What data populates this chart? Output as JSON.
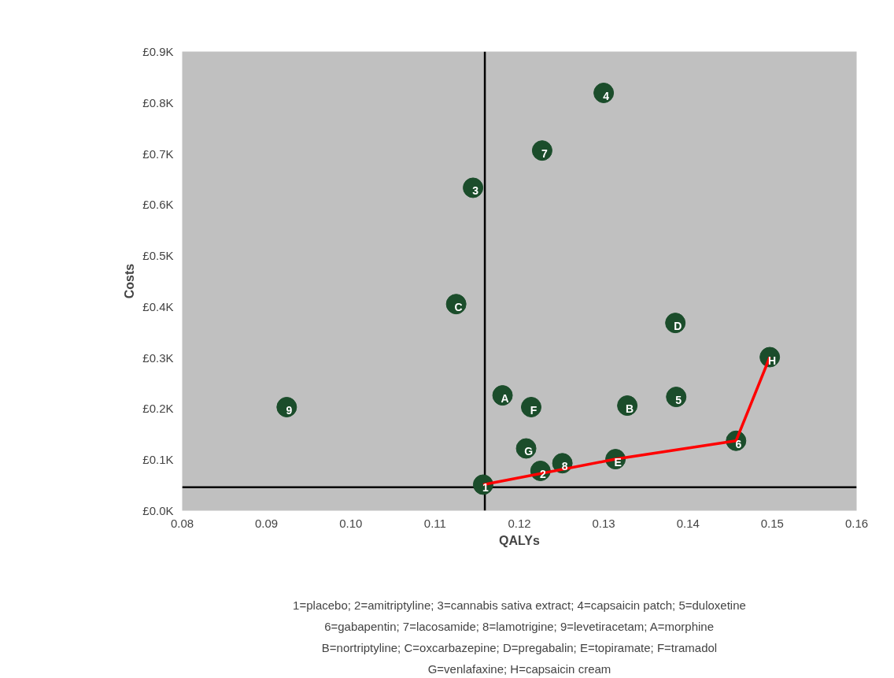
{
  "chart_data": {
    "type": "scatter",
    "xlabel": "QALYs",
    "ylabel": "Costs",
    "xlim": [
      0.08,
      0.16
    ],
    "ylim": [
      0.0,
      0.9
    ],
    "xticks": [
      {
        "value": 0.08,
        "label": "0.08"
      },
      {
        "value": 0.09,
        "label": "0.09"
      },
      {
        "value": 0.1,
        "label": "0.10"
      },
      {
        "value": 0.11,
        "label": "0.11"
      },
      {
        "value": 0.12,
        "label": "0.12"
      },
      {
        "value": 0.13,
        "label": "0.13"
      },
      {
        "value": 0.14,
        "label": "0.14"
      },
      {
        "value": 0.15,
        "label": "0.15"
      },
      {
        "value": 0.16,
        "label": "0.16"
      }
    ],
    "yticks": [
      {
        "value": 0.0,
        "label": "£0.0K"
      },
      {
        "value": 0.1,
        "label": "£0.1K"
      },
      {
        "value": 0.2,
        "label": "£0.2K"
      },
      {
        "value": 0.3,
        "label": "£0.3K"
      },
      {
        "value": 0.4,
        "label": "£0.4K"
      },
      {
        "value": 0.5,
        "label": "£0.5K"
      },
      {
        "value": 0.6,
        "label": "£0.6K"
      },
      {
        "value": 0.7,
        "label": "£0.7K"
      },
      {
        "value": 0.8,
        "label": "£0.8K"
      },
      {
        "value": 0.9,
        "label": "£0.9K"
      }
    ],
    "grid": false,
    "marker": "circle",
    "series": [
      {
        "type": "line",
        "marker": "none",
        "color": "#ff0000",
        "x": [
          0.1157,
          0.1314,
          0.1457,
          0.1497
        ],
        "values": [
          0.051,
          0.101,
          0.137,
          0.301
        ]
      },
      {
        "color": "#1b4d2b",
        "x": [
          0.1157,
          0.1225,
          0.1145,
          0.13,
          0.1386,
          0.1457,
          0.1227,
          0.1251,
          0.0924,
          0.118,
          0.1328,
          0.1125,
          0.1385,
          0.1314,
          0.1214,
          0.1208,
          0.1497
        ],
        "values": [
          0.051,
          0.078,
          0.633,
          0.819,
          0.223,
          0.137,
          0.706,
          0.093,
          0.203,
          0.226,
          0.206,
          0.405,
          0.368,
          0.101,
          0.203,
          0.122,
          0.301
        ]
      }
    ],
    "ref_lines": [
      {
        "axis": "x",
        "value": 0.1159,
        "color": "#000000"
      },
      {
        "axis": "y",
        "value": 0.046,
        "color": "#000000"
      }
    ],
    "annotations": [
      {
        "text": "1",
        "x": 0.1157,
        "y": 0.051
      },
      {
        "text": "2",
        "x": 0.1225,
        "y": 0.078
      },
      {
        "text": "3",
        "x": 0.1145,
        "y": 0.633
      },
      {
        "text": "4",
        "x": 0.13,
        "y": 0.819
      },
      {
        "text": "5",
        "x": 0.1386,
        "y": 0.223
      },
      {
        "text": "6",
        "x": 0.1457,
        "y": 0.137
      },
      {
        "text": "7",
        "x": 0.1227,
        "y": 0.706
      },
      {
        "text": "8",
        "x": 0.1251,
        "y": 0.093
      },
      {
        "text": "9",
        "x": 0.0924,
        "y": 0.203
      },
      {
        "text": "A",
        "x": 0.118,
        "y": 0.226
      },
      {
        "text": "B",
        "x": 0.1328,
        "y": 0.206
      },
      {
        "text": "C",
        "x": 0.1125,
        "y": 0.405
      },
      {
        "text": "D",
        "x": 0.1385,
        "y": 0.368
      },
      {
        "text": "E",
        "x": 0.1314,
        "y": 0.101
      },
      {
        "text": "F",
        "x": 0.1214,
        "y": 0.203
      },
      {
        "text": "G",
        "x": 0.1208,
        "y": 0.122
      },
      {
        "text": "H",
        "x": 0.1497,
        "y": 0.301
      },
      "1=placebo; 2=amitriptyline; 3=cannabis sativa extract; 4=capsaicin patch; 5=duloxetine",
      "6=gabapentin; 7=lacosamide; 8=lamotrigine; 9=levetiracetam; A=morphine",
      "B=nortriptyline; C=oxcarbazepine; D=pregabalin; E=topiramate; F=tramadol",
      "G=venlafaxine; H=capsaicin cream"
    ]
  }
}
